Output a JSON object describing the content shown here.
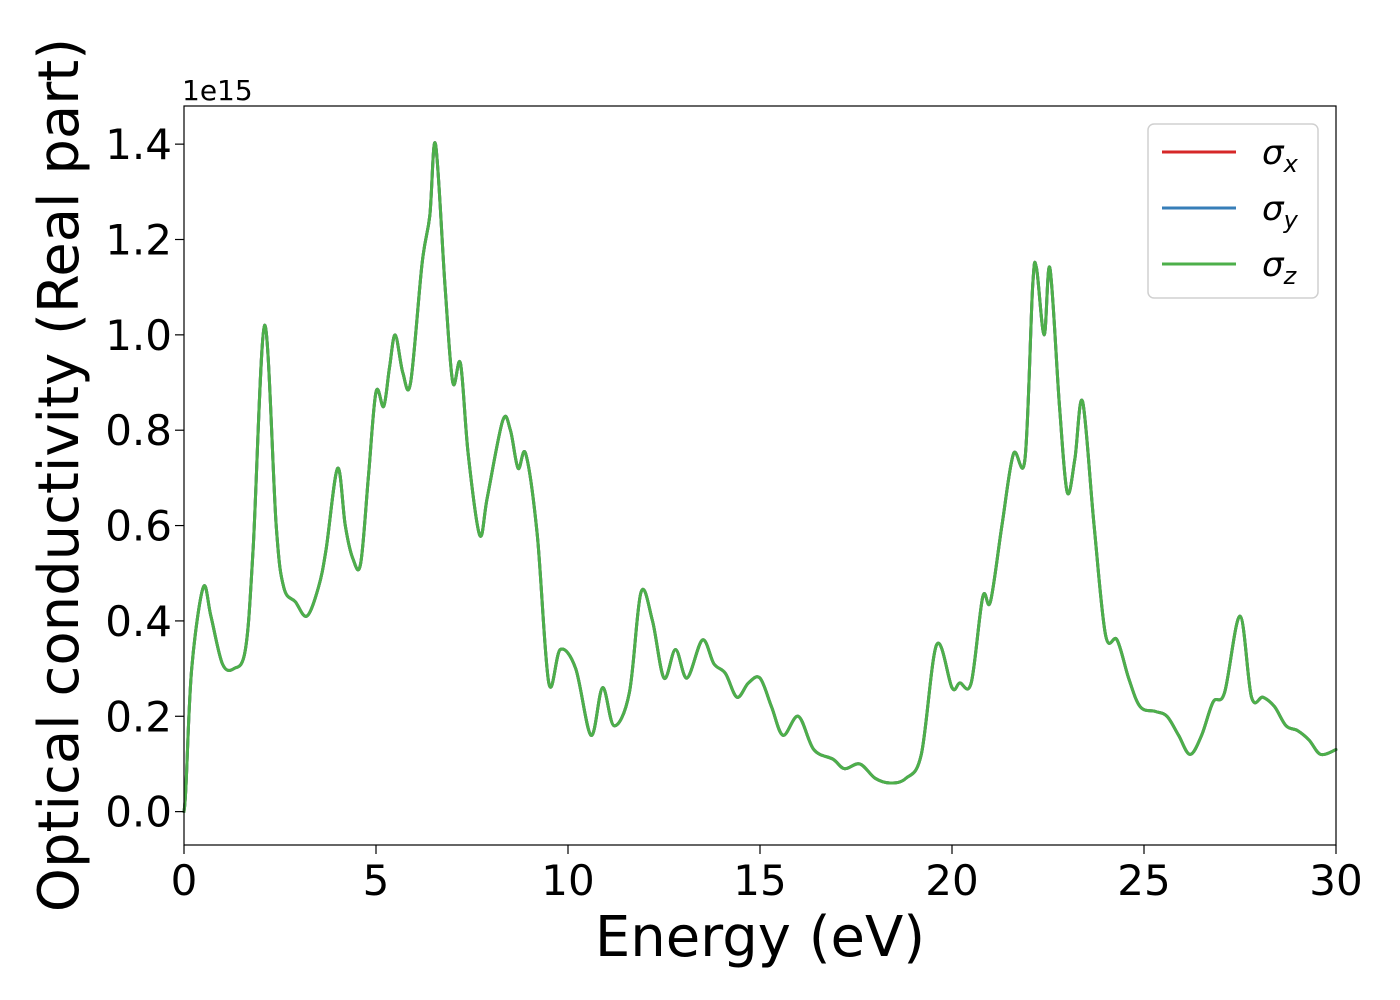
{
  "chart_data": {
    "type": "line",
    "xlabel": "Energy (eV)",
    "ylabel": "Optical conductivity (Real part)",
    "y_offset_label": "1e15",
    "xlim": [
      0,
      30
    ],
    "ylim": [
      -0.07,
      1.48
    ],
    "x_ticks": [
      0,
      5,
      10,
      15,
      20,
      25,
      30
    ],
    "x_tick_labels": [
      "0",
      "5",
      "10",
      "15",
      "20",
      "25",
      "30"
    ],
    "y_ticks": [
      0.0,
      0.2,
      0.4,
      0.6,
      0.8,
      1.0,
      1.2,
      1.4
    ],
    "y_tick_labels": [
      "0.0",
      "0.2",
      "0.4",
      "0.6",
      "0.8",
      "1.0",
      "1.2",
      "1.4"
    ],
    "grid": false,
    "legend_position": "top-right",
    "x": [
      0,
      0.05,
      0.2,
      0.5,
      0.7,
      1.0,
      1.3,
      1.6,
      1.8,
      2.1,
      2.4,
      2.6,
      2.9,
      3.2,
      3.5,
      3.7,
      4.0,
      4.2,
      4.4,
      4.6,
      4.8,
      5.0,
      5.2,
      5.35,
      5.5,
      5.7,
      5.9,
      6.2,
      6.4,
      6.55,
      6.8,
      7.0,
      7.2,
      7.4,
      7.7,
      7.9,
      8.3,
      8.5,
      8.7,
      8.9,
      9.2,
      9.5,
      9.8,
      10.2,
      10.6,
      10.9,
      11.2,
      11.6,
      11.9,
      12.2,
      12.5,
      12.8,
      13.1,
      13.5,
      13.8,
      14.1,
      14.4,
      14.7,
      15.0,
      15.3,
      15.6,
      16.0,
      16.4,
      16.9,
      17.2,
      17.6,
      18.0,
      18.4,
      18.8,
      19.2,
      19.6,
      20.0,
      20.2,
      20.5,
      20.8,
      21.0,
      21.3,
      21.6,
      21.9,
      22.1,
      22.2,
      22.4,
      22.55,
      22.8,
      23.0,
      23.2,
      23.4,
      23.7,
      24.0,
      24.3,
      24.6,
      24.9,
      25.3,
      25.6,
      25.9,
      26.2,
      26.5,
      26.8,
      27.1,
      27.5,
      27.8,
      28.1,
      28.4,
      28.7,
      29.0,
      29.3,
      29.6,
      30.0
    ],
    "series": [
      {
        "name": "σ",
        "subscript": "x",
        "color": "#d62728",
        "values": [
          0.0,
          0.05,
          0.3,
          0.47,
          0.41,
          0.31,
          0.3,
          0.34,
          0.55,
          1.02,
          0.6,
          0.47,
          0.44,
          0.41,
          0.47,
          0.55,
          0.72,
          0.6,
          0.53,
          0.52,
          0.7,
          0.88,
          0.85,
          0.93,
          1.0,
          0.92,
          0.9,
          1.15,
          1.25,
          1.4,
          1.1,
          0.9,
          0.94,
          0.75,
          0.58,
          0.66,
          0.82,
          0.8,
          0.72,
          0.75,
          0.58,
          0.27,
          0.34,
          0.3,
          0.16,
          0.26,
          0.18,
          0.25,
          0.46,
          0.4,
          0.28,
          0.34,
          0.28,
          0.36,
          0.31,
          0.29,
          0.24,
          0.27,
          0.28,
          0.22,
          0.16,
          0.2,
          0.13,
          0.11,
          0.09,
          0.1,
          0.07,
          0.06,
          0.07,
          0.12,
          0.35,
          0.26,
          0.27,
          0.27,
          0.45,
          0.44,
          0.6,
          0.75,
          0.74,
          1.1,
          1.14,
          1.0,
          1.14,
          0.85,
          0.67,
          0.74,
          0.86,
          0.6,
          0.37,
          0.36,
          0.28,
          0.22,
          0.21,
          0.2,
          0.16,
          0.12,
          0.16,
          0.23,
          0.25,
          0.41,
          0.24,
          0.24,
          0.22,
          0.18,
          0.17,
          0.15,
          0.12,
          0.13
        ]
      },
      {
        "name": "σ",
        "subscript": "y",
        "color": "#377eb8",
        "values": [
          0.0,
          0.05,
          0.3,
          0.47,
          0.41,
          0.31,
          0.3,
          0.34,
          0.55,
          1.02,
          0.6,
          0.47,
          0.44,
          0.41,
          0.47,
          0.55,
          0.72,
          0.6,
          0.53,
          0.52,
          0.7,
          0.88,
          0.85,
          0.93,
          1.0,
          0.92,
          0.9,
          1.15,
          1.25,
          1.4,
          1.1,
          0.9,
          0.94,
          0.75,
          0.58,
          0.66,
          0.82,
          0.8,
          0.72,
          0.75,
          0.58,
          0.27,
          0.34,
          0.3,
          0.16,
          0.26,
          0.18,
          0.25,
          0.46,
          0.4,
          0.28,
          0.34,
          0.28,
          0.36,
          0.31,
          0.29,
          0.24,
          0.27,
          0.28,
          0.22,
          0.16,
          0.2,
          0.13,
          0.11,
          0.09,
          0.1,
          0.07,
          0.06,
          0.07,
          0.12,
          0.35,
          0.26,
          0.27,
          0.27,
          0.45,
          0.44,
          0.6,
          0.75,
          0.74,
          1.1,
          1.14,
          1.0,
          1.14,
          0.85,
          0.67,
          0.74,
          0.86,
          0.6,
          0.37,
          0.36,
          0.28,
          0.22,
          0.21,
          0.2,
          0.16,
          0.12,
          0.16,
          0.23,
          0.25,
          0.41,
          0.24,
          0.24,
          0.22,
          0.18,
          0.17,
          0.15,
          0.12,
          0.13
        ]
      },
      {
        "name": "σ",
        "subscript": "z",
        "color": "#4daf4a",
        "values": [
          0.0,
          0.05,
          0.3,
          0.47,
          0.41,
          0.31,
          0.3,
          0.34,
          0.55,
          1.02,
          0.6,
          0.47,
          0.44,
          0.41,
          0.47,
          0.55,
          0.72,
          0.6,
          0.53,
          0.52,
          0.7,
          0.88,
          0.85,
          0.93,
          1.0,
          0.92,
          0.9,
          1.15,
          1.25,
          1.4,
          1.1,
          0.9,
          0.94,
          0.75,
          0.58,
          0.66,
          0.82,
          0.8,
          0.72,
          0.75,
          0.58,
          0.27,
          0.34,
          0.3,
          0.16,
          0.26,
          0.18,
          0.25,
          0.46,
          0.4,
          0.28,
          0.34,
          0.28,
          0.36,
          0.31,
          0.29,
          0.24,
          0.27,
          0.28,
          0.22,
          0.16,
          0.2,
          0.13,
          0.11,
          0.09,
          0.1,
          0.07,
          0.06,
          0.07,
          0.12,
          0.35,
          0.26,
          0.27,
          0.27,
          0.45,
          0.44,
          0.6,
          0.75,
          0.74,
          1.1,
          1.14,
          1.0,
          1.14,
          0.85,
          0.67,
          0.74,
          0.86,
          0.6,
          0.37,
          0.36,
          0.28,
          0.22,
          0.21,
          0.2,
          0.16,
          0.12,
          0.16,
          0.23,
          0.25,
          0.41,
          0.24,
          0.24,
          0.22,
          0.18,
          0.17,
          0.15,
          0.12,
          0.13
        ]
      }
    ]
  }
}
